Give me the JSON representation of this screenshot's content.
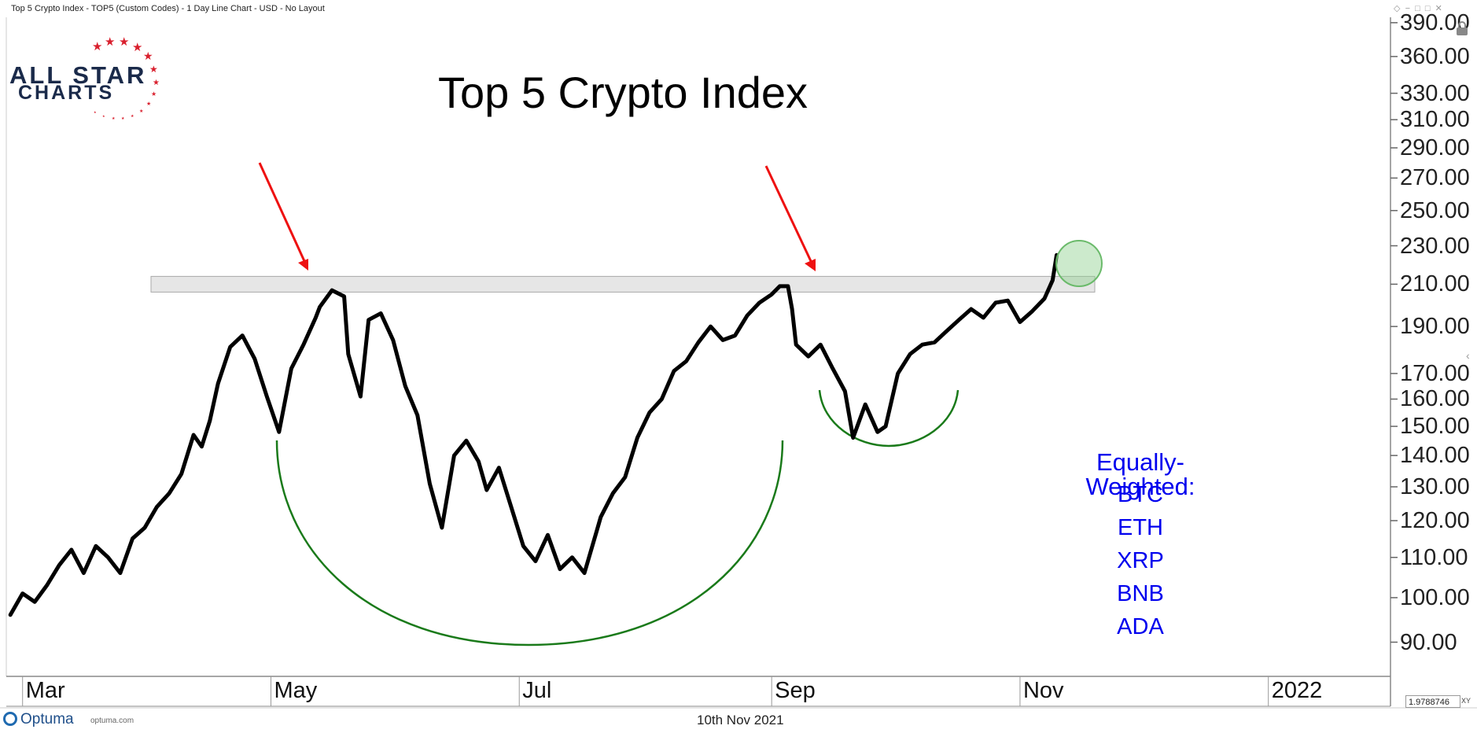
{
  "window_title": "Top 5 Crypto Index - TOP5 (Custom Codes) - 1 Day Line Chart - USD - No Layout",
  "footer_date": "10th Nov 2021",
  "brand": {
    "name": "Optuma",
    "site": "optuma.com"
  },
  "logo": {
    "line1": "ALL STAR",
    "line2": "CHARTS"
  },
  "scale_value": "1.9788746",
  "scale_mode": "XY",
  "icons": {
    "lock": "lock-icon",
    "collapse": "chevron-left-icon",
    "window_controls": "window-controls-icon"
  },
  "colors": {
    "price_line": "#000000",
    "arrows": "#ee1111",
    "arcs": "#1a7a1a",
    "resistance_band": "#d9d9d9",
    "breakout_circle": "#8fd08f",
    "legend_text": "#0000ee",
    "logo_text": "#1a2a4a",
    "logo_stars": "#d9202e"
  },
  "chart_data": {
    "type": "line",
    "title": "Top 5 Crypto Index",
    "y_scale": "log",
    "ylim": [
      83,
      395
    ],
    "y_ticks": [
      "390.00",
      "360.00",
      "330.00",
      "310.00",
      "290.00",
      "270.00",
      "250.00",
      "230.00",
      "210.00",
      "190.00",
      "170.00",
      "160.00",
      "150.00",
      "140.00",
      "130.00",
      "120.00",
      "110.00",
      "100.00",
      "90.00"
    ],
    "x_ticks": [
      "Mar",
      "May",
      "Jul",
      "Sep",
      "Nov",
      "2022"
    ],
    "xlim": [
      "2021-02-25",
      "2022-01-31"
    ],
    "series": [
      {
        "x": [
          "2021-02-26",
          "2021-03-01",
          "2021-03-04",
          "2021-03-07",
          "2021-03-10",
          "2021-03-13",
          "2021-03-16",
          "2021-03-19",
          "2021-03-22",
          "2021-03-25",
          "2021-03-28",
          "2021-03-31",
          "2021-04-03",
          "2021-04-06",
          "2021-04-09",
          "2021-04-12",
          "2021-04-14",
          "2021-04-16",
          "2021-04-18",
          "2021-04-21",
          "2021-04-24",
          "2021-04-27",
          "2021-04-30",
          "2021-05-03",
          "2021-05-06",
          "2021-05-09",
          "2021-05-12",
          "2021-05-13",
          "2021-05-16",
          "2021-05-19",
          "2021-05-20",
          "2021-05-23",
          "2021-05-25",
          "2021-05-28",
          "2021-05-31",
          "2021-06-03",
          "2021-06-06",
          "2021-06-09",
          "2021-06-12",
          "2021-06-15",
          "2021-06-18",
          "2021-06-21",
          "2021-06-23",
          "2021-06-26",
          "2021-06-29",
          "2021-07-02",
          "2021-07-05",
          "2021-07-08",
          "2021-07-11",
          "2021-07-14",
          "2021-07-17",
          "2021-07-20",
          "2021-07-21",
          "2021-07-24",
          "2021-07-27",
          "2021-07-30",
          "2021-08-02",
          "2021-08-05",
          "2021-08-08",
          "2021-08-11",
          "2021-08-14",
          "2021-08-17",
          "2021-08-20",
          "2021-08-23",
          "2021-08-26",
          "2021-08-29",
          "2021-09-01",
          "2021-09-03",
          "2021-09-05",
          "2021-09-06",
          "2021-09-07",
          "2021-09-10",
          "2021-09-13",
          "2021-09-16",
          "2021-09-19",
          "2021-09-21",
          "2021-09-24",
          "2021-09-27",
          "2021-09-29",
          "2021-10-02",
          "2021-10-05",
          "2021-10-08",
          "2021-10-11",
          "2021-10-14",
          "2021-10-17",
          "2021-10-20",
          "2021-10-23",
          "2021-10-26",
          "2021-10-29",
          "2021-11-01",
          "2021-11-04",
          "2021-11-07",
          "2021-11-09",
          "2021-11-10"
        ],
        "y": [
          96,
          101,
          99,
          103,
          108,
          112,
          106,
          113,
          110,
          106,
          115,
          118,
          124,
          128,
          134,
          147,
          143,
          152,
          166,
          181,
          186,
          176,
          161,
          148,
          172,
          182,
          194,
          199,
          207,
          204,
          178,
          161,
          193,
          196,
          184,
          165,
          154,
          131,
          118,
          140,
          145,
          138,
          129,
          136,
          124,
          113,
          109,
          116,
          107,
          110,
          106,
          117,
          121,
          128,
          133,
          146,
          155,
          160,
          171,
          175,
          183,
          190,
          184,
          186,
          195,
          201,
          205,
          209,
          209,
          198,
          182,
          177,
          182,
          172,
          163,
          146,
          158,
          148,
          150,
          170,
          178,
          182,
          183,
          188,
          193,
          198,
          194,
          201,
          202,
          192,
          197,
          203,
          212,
          225
        ]
      }
    ],
    "resistance_level": 210,
    "annotations": {
      "legend_heading": "Equally-Weighted:",
      "legend_items": [
        "BTC",
        "ETH",
        "XRP",
        "BNB",
        "ADA"
      ]
    }
  }
}
